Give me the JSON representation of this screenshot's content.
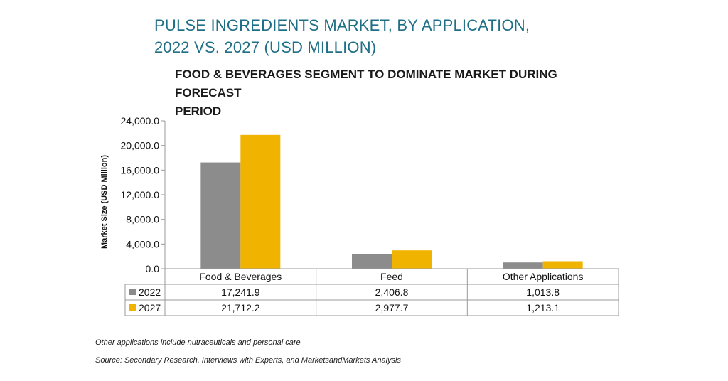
{
  "title_line1": "PULSE INGREDIENTS MARKET, BY APPLICATION,",
  "title_line2": "2022 VS. 2027 (USD MILLION)",
  "subtitle_line1": "FOOD & BEVERAGES SEGMENT TO DOMINATE MARKET DURING FORECAST",
  "subtitle_line2": "PERIOD",
  "note": "Other applications include nutraceuticals and personal care",
  "source": "Source: Secondary Research, Interviews with Experts, and MarketsandMarkets Analysis",
  "colors": {
    "2022": "#8c8c8c",
    "2027": "#f0b400"
  },
  "chart_data": {
    "type": "bar",
    "title": "PULSE INGREDIENTS MARKET, BY APPLICATION, 2022 VS. 2027 (USD MILLION)",
    "ylabel": "Market Size (USD Million)",
    "xlabel": "",
    "categories": [
      "Food & Beverages",
      "Feed",
      "Other Applications"
    ],
    "series": [
      {
        "name": "2022",
        "values": [
          17241.9,
          2406.8,
          1013.8
        ],
        "labels": [
          "17,241.9",
          "2,406.8",
          "1,013.8"
        ]
      },
      {
        "name": "2027",
        "values": [
          21712.2,
          2977.7,
          1213.1
        ],
        "labels": [
          "21,712.2",
          "2,977.7",
          "1,213.1"
        ]
      }
    ],
    "ylim": [
      0,
      24000
    ],
    "yticks": [
      0,
      4000,
      8000,
      12000,
      16000,
      20000,
      24000
    ],
    "ytick_labels": [
      "0.0",
      "4,000.0",
      "8,000.0",
      "12,000.0",
      "16,000.0",
      "20,000.0",
      "24,000.0"
    ],
    "grid": false,
    "legend": "data-table"
  }
}
